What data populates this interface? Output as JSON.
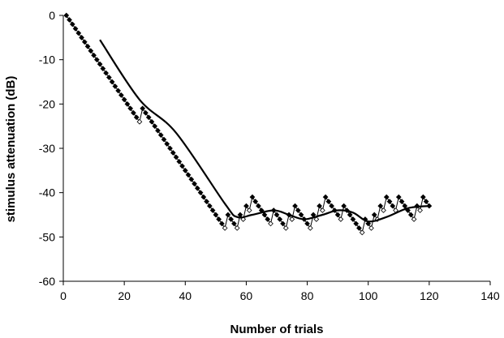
{
  "chart_data": {
    "type": "line",
    "title": "",
    "xlabel": "Number of trials",
    "ylabel": "stimulus attenuation (dB)",
    "xlim": [
      0,
      140
    ],
    "ylim": [
      -60,
      0
    ],
    "xticks": [
      0,
      20,
      40,
      60,
      80,
      100,
      120,
      140
    ],
    "yticks": [
      0,
      -10,
      -20,
      -30,
      -40,
      -50,
      -60
    ],
    "grid": false,
    "legend": "none",
    "series": [
      {
        "style": "zigzag-diamond-markers",
        "color": "#000000",
        "x": [
          1,
          25,
          26,
          53,
          54,
          55,
          56,
          57,
          58,
          59,
          60,
          61,
          62,
          63,
          64,
          65,
          66,
          67,
          68,
          69,
          70,
          71,
          72,
          73,
          74,
          75,
          76,
          77,
          78,
          79,
          80,
          81,
          82,
          83,
          84,
          85,
          86,
          87,
          88,
          89,
          90,
          91,
          92,
          93,
          94,
          95,
          96,
          97,
          98,
          99,
          100,
          101,
          102,
          103,
          104,
          105,
          106,
          107,
          108,
          109,
          110,
          111,
          112,
          113,
          114,
          115,
          116,
          117,
          118,
          119,
          120
        ],
        "y": [
          0,
          -24,
          -21,
          -48,
          -45,
          -46,
          -47,
          -48,
          -45,
          -46,
          -43,
          -44,
          -41,
          -42,
          -43,
          -44,
          -45,
          -46,
          -47,
          -44,
          -45,
          -46,
          -47,
          -48,
          -45,
          -46,
          -43,
          -44,
          -45,
          -46,
          -47,
          -48,
          -45,
          -46,
          -43,
          -44,
          -41,
          -42,
          -43,
          -44,
          -45,
          -46,
          -43,
          -44,
          -45,
          -46,
          -47,
          -48,
          -49,
          -46,
          -47,
          -48,
          -45,
          -46,
          -43,
          -44,
          -41,
          -42,
          -43,
          -44,
          -41,
          -42,
          -43,
          -44,
          -45,
          -46,
          -43,
          -44,
          -41,
          -42,
          -43
        ]
      },
      {
        "style": "solid-line",
        "color": "#000000",
        "x": [
          12,
          25,
          37,
          53,
          57,
          62,
          69,
          74,
          79,
          85,
          90,
          95,
          100,
          106,
          113,
          120
        ],
        "y": [
          -5.5,
          -19,
          -26.5,
          -42.5,
          -45.5,
          -45,
          -44,
          -45,
          -46,
          -45,
          -44,
          -44.5,
          -46.5,
          -45.5,
          -43.5,
          -43
        ]
      }
    ]
  }
}
